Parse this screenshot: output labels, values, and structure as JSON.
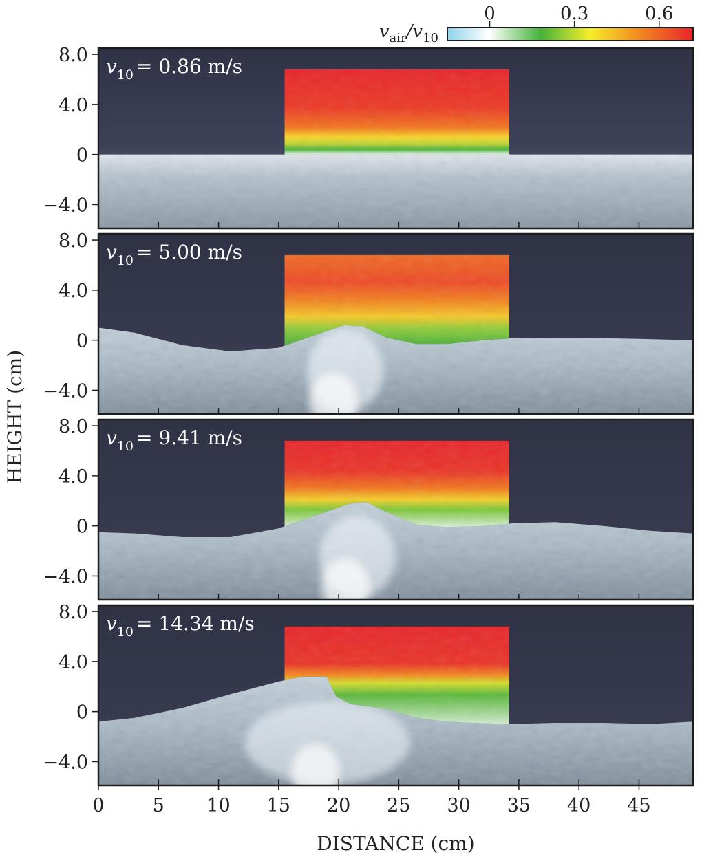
{
  "figure": {
    "y_axis_label": "HEIGHT (cm)",
    "x_axis_label": "DISTANCE (cm)",
    "y_ticks": [
      "8.0",
      "4.0",
      "0",
      "−4.0"
    ],
    "y_tick_values": [
      8,
      4,
      0,
      -4
    ],
    "x_ticks": [
      "0",
      "5",
      "10",
      "15",
      "20",
      "25",
      "30",
      "35",
      "40",
      "45"
    ],
    "x_tick_values": [
      0,
      5,
      10,
      15,
      20,
      25,
      30,
      35,
      40,
      45
    ],
    "x_range_cm": [
      0,
      49.5
    ],
    "y_range_cm": [
      -5.9,
      8.5
    ],
    "piv_window_x_cm": [
      15.5,
      34.2
    ],
    "piv_window_top_cm": 6.8
  },
  "colorbar": {
    "label_main": "v",
    "label_sub_main": "air",
    "label_sep": "/v",
    "label_sub_den": "10",
    "ticks": [
      "0",
      "0.3",
      "0.6"
    ],
    "tick_values": [
      0,
      0.3,
      0.6
    ],
    "range": [
      -0.15,
      0.72
    ],
    "colors": [
      "#8fd3ea",
      "#ffffff",
      "#45b23a",
      "#f6ee2a",
      "#f28a1f",
      "#e8242a"
    ]
  },
  "panels": [
    {
      "label_sym": "v",
      "label_sub": "10",
      "label_val": "= 0.86 m/s",
      "wind_speed_m_s": 0.86
    },
    {
      "label_sym": "v",
      "label_sub": "10",
      "label_val": "= 5.00 m/s",
      "wind_speed_m_s": 5.0
    },
    {
      "label_sym": "v",
      "label_sub": "10",
      "label_val": "= 9.41 m/s",
      "wind_speed_m_s": 9.41
    },
    {
      "label_sym": "v",
      "label_sub": "10",
      "label_val": "= 14.34 m/s",
      "wind_speed_m_s": 14.34
    }
  ],
  "colors": {
    "sky": "#35374b",
    "water_light": "#c6d3dc",
    "water_dark": "#768592",
    "foam": "#f4f8fb",
    "frame": "#1c1c1c"
  }
}
